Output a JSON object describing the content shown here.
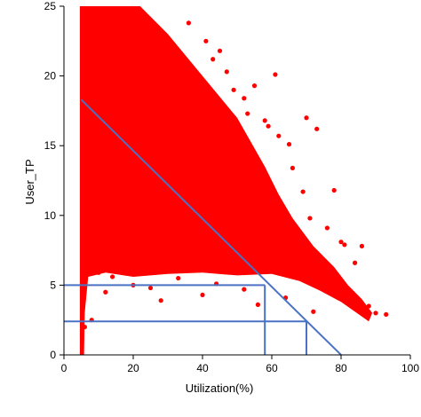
{
  "chart_data": {
    "type": "scatter",
    "title": "",
    "xlabel": "Utilization(%)",
    "ylabel": "User_TP",
    "xlim": [
      0,
      100
    ],
    "ylim": [
      0,
      25
    ],
    "x_ticks": [
      0,
      20,
      40,
      60,
      80,
      100
    ],
    "y_ticks": [
      0,
      5,
      10,
      15,
      20,
      25
    ],
    "grid": false,
    "colors": {
      "points": "#ff0000",
      "lines": "#4a72c4"
    },
    "series": [
      {
        "points": [
          [
            36,
            23.8
          ],
          [
            41,
            22.5
          ],
          [
            43,
            21.2
          ],
          [
            45,
            21.8
          ],
          [
            47,
            20.3
          ],
          [
            49,
            19.0
          ],
          [
            52,
            18.4
          ],
          [
            53,
            17.3
          ],
          [
            55,
            19.3
          ],
          [
            58,
            16.8
          ],
          [
            59,
            16.4
          ],
          [
            61,
            20.1
          ],
          [
            62,
            15.7
          ],
          [
            65,
            15.1
          ],
          [
            66,
            13.4
          ],
          [
            69,
            11.7
          ],
          [
            70,
            17.0
          ],
          [
            71,
            9.8
          ],
          [
            73,
            16.2
          ],
          [
            76,
            9.1
          ],
          [
            78,
            11.8
          ],
          [
            80,
            8.1
          ],
          [
            81,
            7.9
          ],
          [
            84,
            6.6
          ],
          [
            86,
            7.8
          ],
          [
            88,
            3.5
          ],
          [
            90,
            3.0
          ],
          [
            93,
            2.9
          ],
          [
            6,
            2.0
          ],
          [
            8,
            2.5
          ],
          [
            12,
            4.5
          ],
          [
            14,
            5.6
          ],
          [
            20,
            5.0
          ],
          [
            25,
            4.8
          ],
          [
            33,
            5.5
          ],
          [
            38,
            6.1
          ],
          [
            44,
            5.1
          ],
          [
            52,
            4.7
          ],
          [
            56,
            3.6
          ],
          [
            60,
            6.0
          ],
          [
            64,
            4.1
          ],
          [
            72,
            3.1
          ],
          [
            67,
            6.6
          ],
          [
            75,
            5.4
          ],
          [
            10,
            5.9
          ],
          [
            18,
            6.2
          ],
          [
            28,
            3.9
          ],
          [
            30,
            6.0
          ],
          [
            40,
            4.3
          ],
          [
            48,
            6.4
          ]
        ]
      }
    ],
    "annotations": {
      "regression_line": {
        "x1": 5,
        "y1": 18.3,
        "x2": 80,
        "y2": 0
      },
      "threshold_lines": [
        {
          "y": 5.0,
          "x_end": 58
        },
        {
          "y": 2.4,
          "x_end": 70
        }
      ]
    }
  }
}
